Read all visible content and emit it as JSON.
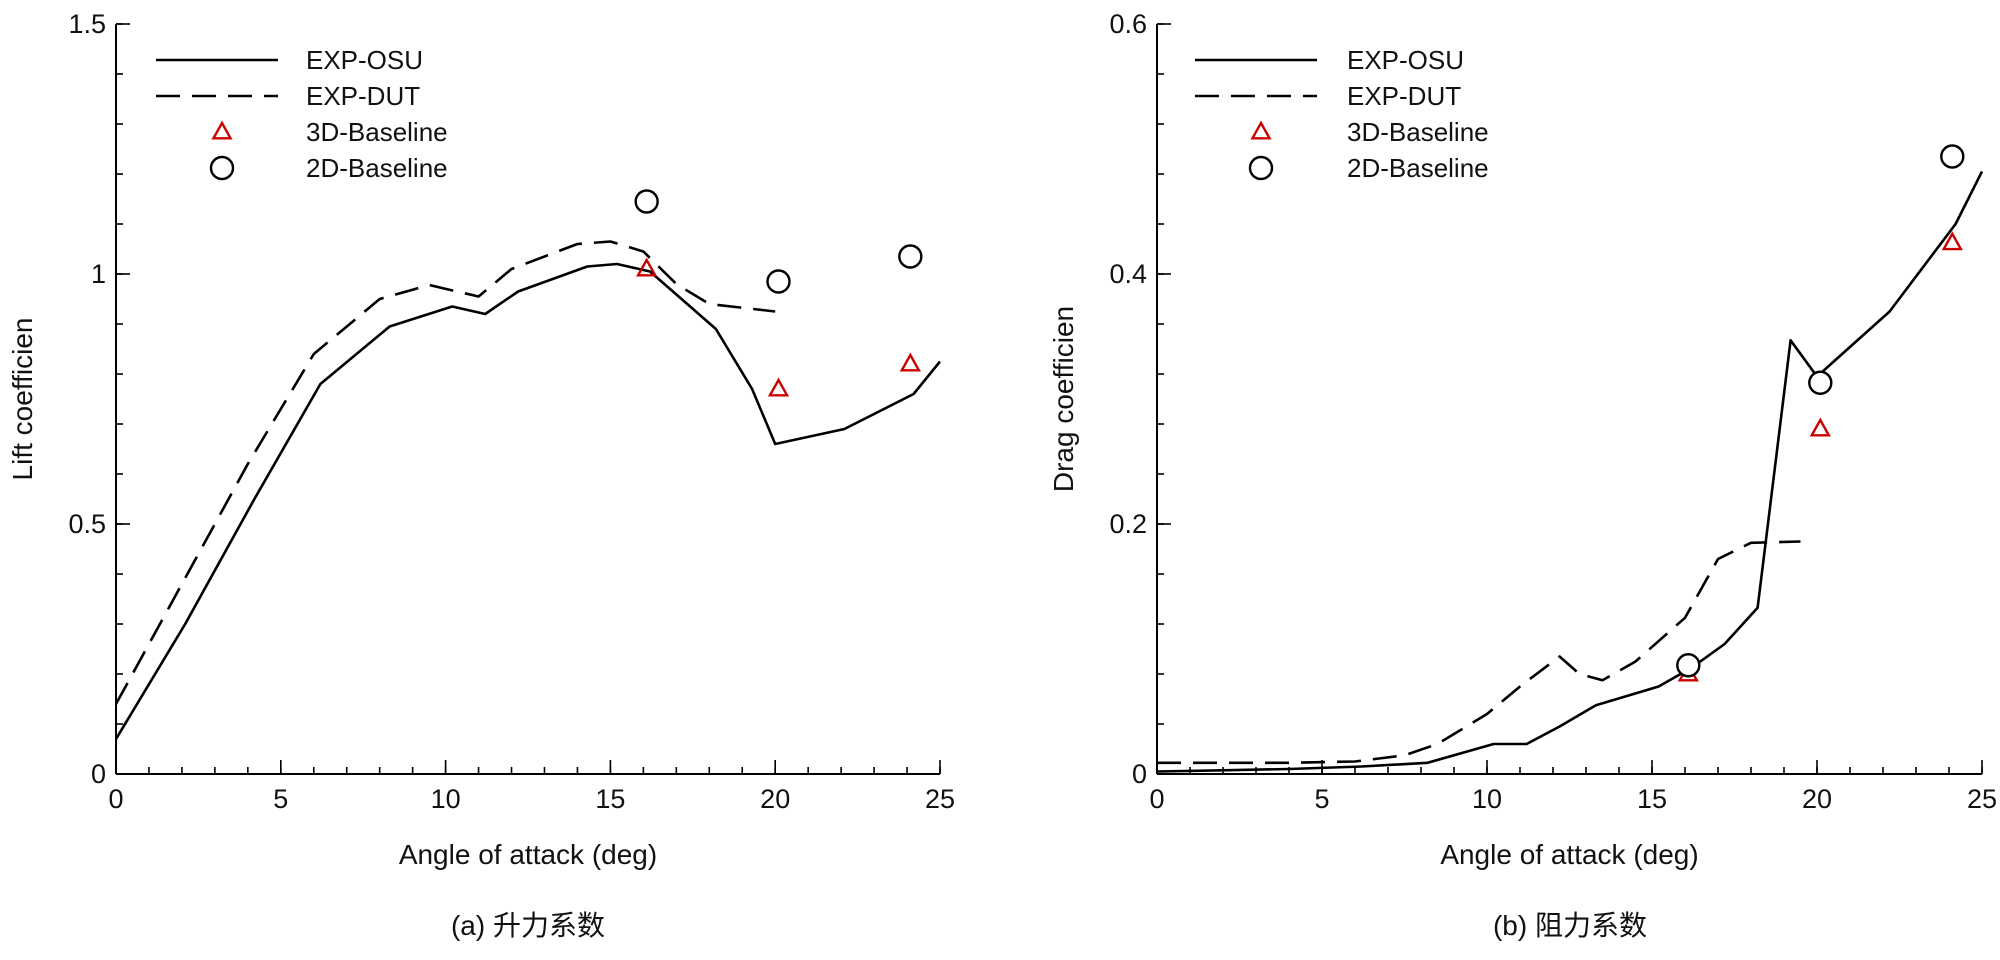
{
  "chart_data": [
    {
      "type": "line",
      "panel": "a",
      "caption": "(a) 升力系数",
      "xlabel": "Angle of attack (deg)",
      "ylabel": "Lift coefficien",
      "xlim": [
        0,
        25
      ],
      "ylim": [
        0,
        1.5
      ],
      "xticks": [
        0,
        5,
        10,
        15,
        20,
        25
      ],
      "xtick_labels": [
        "0",
        "5",
        "10",
        "15",
        "20",
        "25"
      ],
      "yticks": [
        0,
        0.5,
        1,
        1.5
      ],
      "ytick_labels": [
        "0",
        "0.5",
        "1",
        "1.5"
      ],
      "x_minor_step": 1,
      "y_minor_step": 0.1,
      "grid": false,
      "legend_position": "top-left",
      "series": [
        {
          "name": "EXP-OSU",
          "style": "solid",
          "color": "#000000",
          "x": [
            0,
            2.1,
            4.2,
            6.2,
            8.3,
            10.2,
            11.2,
            12.2,
            14.3,
            15.2,
            16.2,
            18.2,
            19.3,
            20.0,
            22.1,
            24.2,
            25.0
          ],
          "y": [
            0.07,
            0.3,
            0.55,
            0.78,
            0.895,
            0.935,
            0.92,
            0.965,
            1.015,
            1.02,
            1.005,
            0.89,
            0.77,
            0.66,
            0.69,
            0.76,
            0.825
          ]
        },
        {
          "name": "EXP-DUT",
          "style": "dashed",
          "color": "#000000",
          "x": [
            0,
            2.0,
            4.0,
            6.0,
            8.0,
            9.5,
            11.0,
            12.0,
            14.0,
            15.0,
            16.0,
            17.0,
            18.0,
            20.0
          ],
          "y": [
            0.14,
            0.38,
            0.62,
            0.84,
            0.95,
            0.978,
            0.955,
            1.01,
            1.06,
            1.065,
            1.045,
            0.98,
            0.94,
            0.925
          ]
        },
        {
          "name": "3D-Baseline",
          "style": "triangle",
          "color": "#cc0000",
          "x": [
            16.1,
            20.1,
            24.1
          ],
          "y": [
            1.01,
            0.77,
            0.82
          ]
        },
        {
          "name": "2D-Baseline",
          "style": "circle",
          "color": "#000000",
          "x": [
            16.1,
            20.1,
            24.1
          ],
          "y": [
            1.145,
            0.985,
            1.035
          ]
        }
      ]
    },
    {
      "type": "line",
      "panel": "b",
      "caption": "(b) 阻力系数",
      "xlabel": "Angle of attack (deg)",
      "ylabel": "Drag coefficien",
      "xlim": [
        0,
        25
      ],
      "ylim": [
        0,
        0.6
      ],
      "xticks": [
        0,
        5,
        10,
        15,
        20,
        25
      ],
      "xtick_labels": [
        "0",
        "5",
        "10",
        "15",
        "20",
        "25"
      ],
      "yticks": [
        0,
        0.2,
        0.4,
        0.6
      ],
      "ytick_labels": [
        "0",
        "0.2",
        "0.4",
        "0.6"
      ],
      "x_minor_step": 1,
      "y_minor_step": 0.04,
      "grid": false,
      "legend_position": "top-left",
      "series": [
        {
          "name": "EXP-OSU",
          "style": "solid",
          "color": "#000000",
          "x": [
            0,
            2,
            4,
            6.2,
            8.2,
            10.2,
            11.2,
            12.2,
            13.3,
            15.2,
            16.2,
            17.2,
            18.2,
            19.2,
            20.0,
            22.2,
            24.2,
            25.0
          ],
          "y": [
            0.002,
            0.003,
            0.004,
            0.006,
            0.009,
            0.024,
            0.024,
            0.038,
            0.055,
            0.07,
            0.085,
            0.104,
            0.133,
            0.347,
            0.318,
            0.37,
            0.44,
            0.482
          ]
        },
        {
          "name": "EXP-DUT",
          "style": "dashed",
          "color": "#000000",
          "x": [
            0,
            4,
            6,
            7.5,
            8.5,
            10,
            11,
            12.2,
            12.8,
            13.5,
            14.5,
            16,
            17,
            18,
            19.5
          ],
          "y": [
            0.009,
            0.009,
            0.01,
            0.015,
            0.024,
            0.048,
            0.07,
            0.094,
            0.08,
            0.075,
            0.09,
            0.125,
            0.172,
            0.185,
            0.186
          ]
        },
        {
          "name": "3D-Baseline",
          "style": "triangle",
          "color": "#cc0000",
          "x": [
            16.1,
            20.1,
            24.1
          ],
          "y": [
            0.08,
            0.276,
            0.425
          ]
        },
        {
          "name": "2D-Baseline",
          "style": "circle",
          "color": "#000000",
          "x": [
            16.1,
            20.1,
            24.1
          ],
          "y": [
            0.087,
            0.313,
            0.494
          ]
        }
      ]
    }
  ]
}
